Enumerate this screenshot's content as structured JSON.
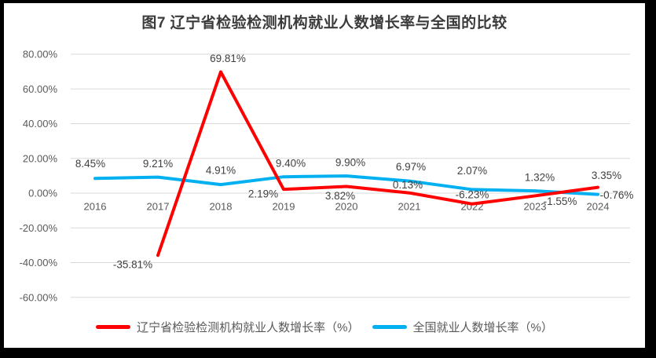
{
  "frame": {
    "border_color": "#000000",
    "background": "#ffffff"
  },
  "chart_data": {
    "type": "line",
    "title": "图7  辽宁省检验检测机构就业人数增长率与全国的比较",
    "grid": true,
    "grid_color": "#d9d9d9",
    "legend_position": "bottom",
    "categories": [
      "2016",
      "2017",
      "2018",
      "2019",
      "2020",
      "2021",
      "2022",
      "2023",
      "2024"
    ],
    "y_axis": {
      "min": -60,
      "max": 80,
      "tick_values": [
        80,
        60,
        40,
        20,
        0,
        -20,
        -40,
        -60
      ],
      "ticks": [
        "80.00%",
        "60.00%",
        "40.00%",
        "20.00%",
        "0.00%",
        "-20.00%",
        "-40.00%",
        "-60.00%"
      ]
    },
    "series": [
      {
        "id": "liaoning",
        "name": "辽宁省检验检测机构就业人数增长率（%）",
        "color": "#ff0000",
        "values": [
          null,
          -35.81,
          69.81,
          2.19,
          3.82,
          0.13,
          -6.23,
          -1.55,
          3.35
        ],
        "labels": [
          "",
          "-35.81%",
          "69.81%",
          "2.19%",
          "3.82%",
          "0.13%",
          "-6.23%",
          "-1.55%",
          "3.35%"
        ]
      },
      {
        "id": "national",
        "name": "全国就业人数增长率（%）",
        "color": "#00b0f0",
        "values": [
          8.45,
          9.21,
          4.91,
          9.4,
          9.9,
          6.97,
          2.07,
          1.32,
          -0.76
        ],
        "labels": [
          "8.45%",
          "9.21%",
          "4.91%",
          "9.40%",
          "9.90%",
          "6.97%",
          "2.07%",
          "1.32%",
          "-0.76%"
        ]
      }
    ],
    "text_colors": {
      "title": "#3b3b3b",
      "axis": "#595959",
      "data_labels": "#404040"
    }
  }
}
